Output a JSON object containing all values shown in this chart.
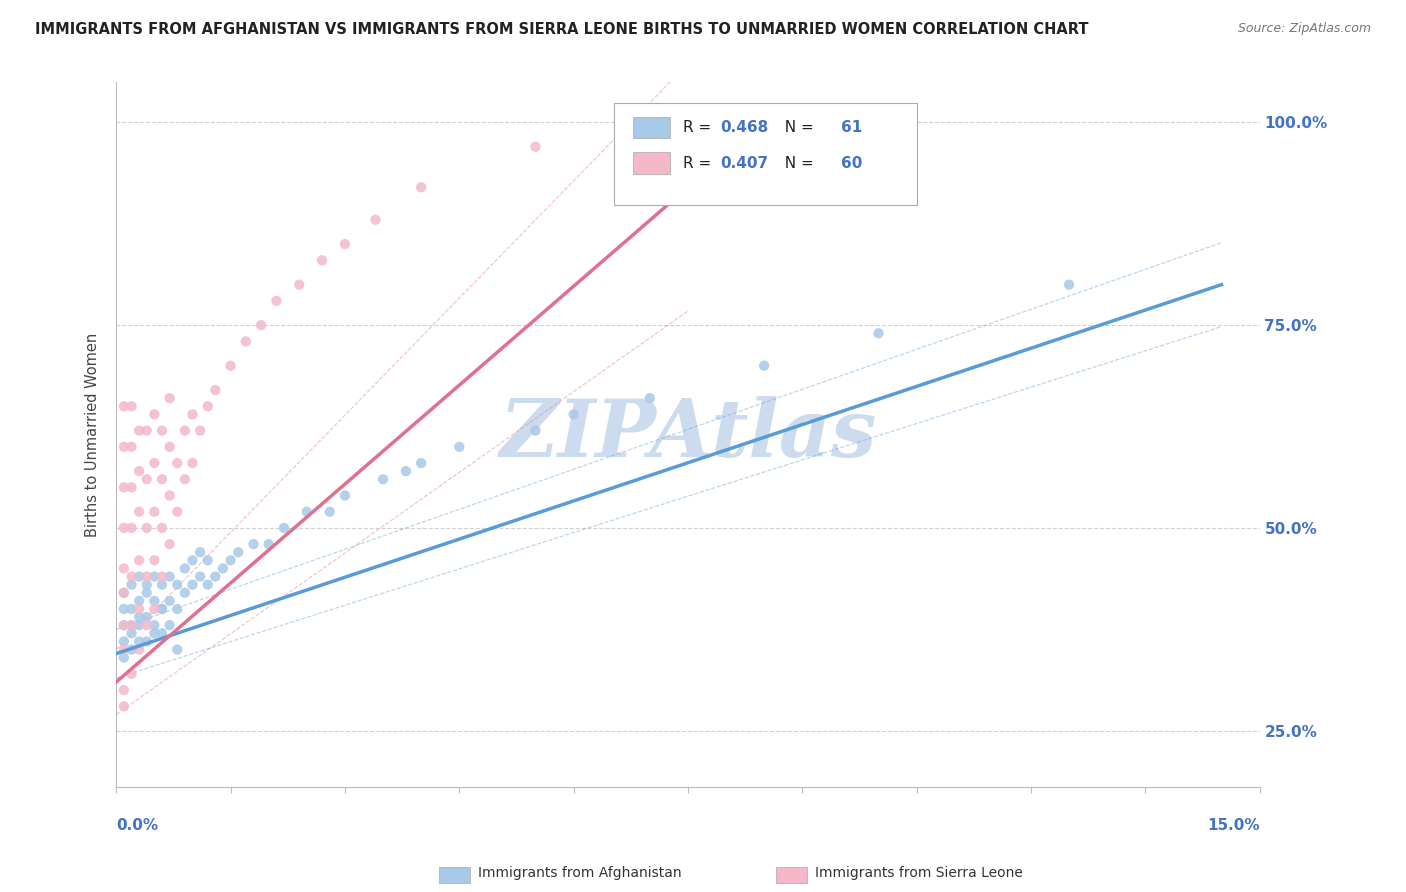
{
  "title": "IMMIGRANTS FROM AFGHANISTAN VS IMMIGRANTS FROM SIERRA LEONE BIRTHS TO UNMARRIED WOMEN CORRELATION CHART",
  "source": "Source: ZipAtlas.com",
  "ylabel": "Births to Unmarried Women",
  "ytick_values": [
    0.25,
    0.5,
    0.75,
    1.0
  ],
  "xlim": [
    0.0,
    0.15
  ],
  "ylim": [
    0.18,
    1.05
  ],
  "afghanistan_color": "#a8c8e8",
  "afghanistan_color_line": "#5b9bd5",
  "sierra_leone_color": "#f4b8c8",
  "sierra_leone_color_line": "#e07090",
  "axis_label_color": "#4472c4",
  "watermark_color": "#ccdcee",
  "grid_color": "#d0d0d0",
  "title_color": "#222222",
  "background_color": "#ffffff",
  "afg_x": [
    0.001,
    0.001,
    0.001,
    0.001,
    0.001,
    0.002,
    0.002,
    0.002,
    0.002,
    0.002,
    0.003,
    0.003,
    0.003,
    0.003,
    0.003,
    0.004,
    0.004,
    0.004,
    0.004,
    0.005,
    0.005,
    0.005,
    0.005,
    0.006,
    0.006,
    0.006,
    0.006,
    0.007,
    0.007,
    0.007,
    0.008,
    0.008,
    0.008,
    0.009,
    0.009,
    0.01,
    0.01,
    0.011,
    0.011,
    0.012,
    0.012,
    0.013,
    0.014,
    0.015,
    0.016,
    0.018,
    0.02,
    0.022,
    0.025,
    0.028,
    0.03,
    0.035,
    0.038,
    0.04,
    0.045,
    0.055,
    0.06,
    0.07,
    0.085,
    0.1,
    0.125
  ],
  "afg_y": [
    0.36,
    0.38,
    0.4,
    0.42,
    0.34,
    0.37,
    0.4,
    0.43,
    0.35,
    0.38,
    0.38,
    0.41,
    0.44,
    0.36,
    0.39,
    0.39,
    0.42,
    0.36,
    0.43,
    0.38,
    0.41,
    0.44,
    0.37,
    0.4,
    0.43,
    0.37,
    0.4,
    0.41,
    0.44,
    0.38,
    0.4,
    0.43,
    0.35,
    0.42,
    0.45,
    0.43,
    0.46,
    0.44,
    0.47,
    0.43,
    0.46,
    0.44,
    0.45,
    0.46,
    0.47,
    0.48,
    0.48,
    0.5,
    0.52,
    0.52,
    0.54,
    0.56,
    0.57,
    0.58,
    0.6,
    0.62,
    0.64,
    0.66,
    0.7,
    0.74,
    0.8
  ],
  "sl_x": [
    0.001,
    0.001,
    0.001,
    0.001,
    0.001,
    0.001,
    0.001,
    0.001,
    0.001,
    0.001,
    0.002,
    0.002,
    0.002,
    0.002,
    0.002,
    0.002,
    0.002,
    0.003,
    0.003,
    0.003,
    0.003,
    0.003,
    0.003,
    0.004,
    0.004,
    0.004,
    0.004,
    0.004,
    0.005,
    0.005,
    0.005,
    0.005,
    0.005,
    0.006,
    0.006,
    0.006,
    0.006,
    0.007,
    0.007,
    0.007,
    0.007,
    0.008,
    0.008,
    0.009,
    0.009,
    0.01,
    0.01,
    0.011,
    0.012,
    0.013,
    0.015,
    0.017,
    0.019,
    0.021,
    0.024,
    0.027,
    0.03,
    0.034,
    0.04,
    0.055
  ],
  "sl_y": [
    0.35,
    0.38,
    0.42,
    0.45,
    0.5,
    0.55,
    0.6,
    0.65,
    0.3,
    0.28,
    0.32,
    0.38,
    0.44,
    0.5,
    0.55,
    0.6,
    0.65,
    0.35,
    0.4,
    0.46,
    0.52,
    0.57,
    0.62,
    0.38,
    0.44,
    0.5,
    0.56,
    0.62,
    0.4,
    0.46,
    0.52,
    0.58,
    0.64,
    0.44,
    0.5,
    0.56,
    0.62,
    0.48,
    0.54,
    0.6,
    0.66,
    0.52,
    0.58,
    0.56,
    0.62,
    0.58,
    0.64,
    0.62,
    0.65,
    0.67,
    0.7,
    0.73,
    0.75,
    0.78,
    0.8,
    0.83,
    0.85,
    0.88,
    0.92,
    0.97
  ],
  "afg_trend_x": [
    0.0,
    0.145
  ],
  "afg_trend_y": [
    0.345,
    0.8
  ],
  "sl_trend_x": [
    0.0,
    0.075
  ],
  "sl_trend_y": [
    0.31,
    0.92
  ]
}
